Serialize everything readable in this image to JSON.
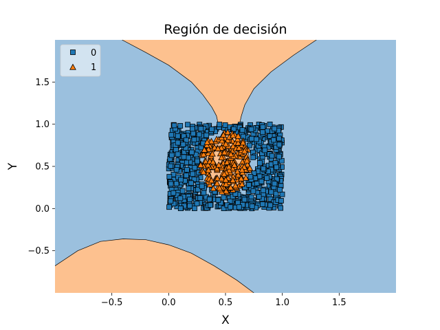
{
  "chart_data": {
    "type": "scatter",
    "title": "Región de decisión",
    "xlabel": "X",
    "ylabel": "Y",
    "xlim": [
      -1.0,
      2.0
    ],
    "ylim": [
      -1.0,
      2.0
    ],
    "xticks": [
      -0.5,
      0.0,
      0.5,
      1.0,
      1.5
    ],
    "xtick_labels": [
      "−0.5",
      "0.0",
      "0.5",
      "1.0",
      "1.5"
    ],
    "yticks": [
      -0.5,
      0.0,
      0.5,
      1.0,
      1.5
    ],
    "ytick_labels": [
      "−0.5",
      "0.0",
      "0.5",
      "1.0",
      "1.5"
    ],
    "grid": false,
    "legend_position": "top-left",
    "background_class": "0",
    "colors": {
      "class0_region": "#9bc0de",
      "class1_region": "#fdc18f",
      "class0_marker": "#1f77b4",
      "class1_marker": "#ff7f0e",
      "boundary": "#000000"
    },
    "legend": [
      {
        "label": "0",
        "marker": "square"
      },
      {
        "label": "1",
        "marker": "triangle"
      }
    ],
    "decision_regions": [
      {
        "class": "1",
        "name": "upper-wedge",
        "boundary_x": [
          -0.41,
          -0.2,
          0.0,
          0.2,
          0.3,
          0.38,
          0.42,
          0.44,
          0.45,
          0.5,
          0.6,
          0.62,
          0.64,
          0.67,
          0.75,
          0.9,
          1.1,
          1.3
        ],
        "boundary_y": [
          2.0,
          1.85,
          1.7,
          1.5,
          1.35,
          1.2,
          1.1,
          0.98,
          0.95,
          0.95,
          0.95,
          0.98,
          1.1,
          1.23,
          1.42,
          1.62,
          1.82,
          2.0
        ]
      },
      {
        "class": "1",
        "name": "central-disc",
        "center": [
          0.52,
          0.56
        ],
        "radius_x": 0.19,
        "radius_y": 0.31
      },
      {
        "class": "1",
        "name": "lower-left-lobe",
        "boundary_x": [
          -1.0,
          -0.8,
          -0.6,
          -0.4,
          -0.2,
          0.0,
          0.2,
          0.4,
          0.6,
          0.75
        ],
        "boundary_y": [
          -0.68,
          -0.5,
          -0.39,
          -0.36,
          -0.37,
          -0.43,
          -0.53,
          -0.68,
          -0.85,
          -1.0
        ]
      }
    ],
    "series": [
      {
        "name": "0",
        "marker": "square",
        "count": 700,
        "x_range": [
          0.0,
          1.0
        ],
        "y_range": [
          0.0,
          1.0
        ]
      },
      {
        "name": "1",
        "marker": "triangle",
        "count": 230,
        "center": [
          0.5,
          0.55
        ],
        "radius_x": 0.22,
        "radius_y": 0.36
      }
    ]
  }
}
